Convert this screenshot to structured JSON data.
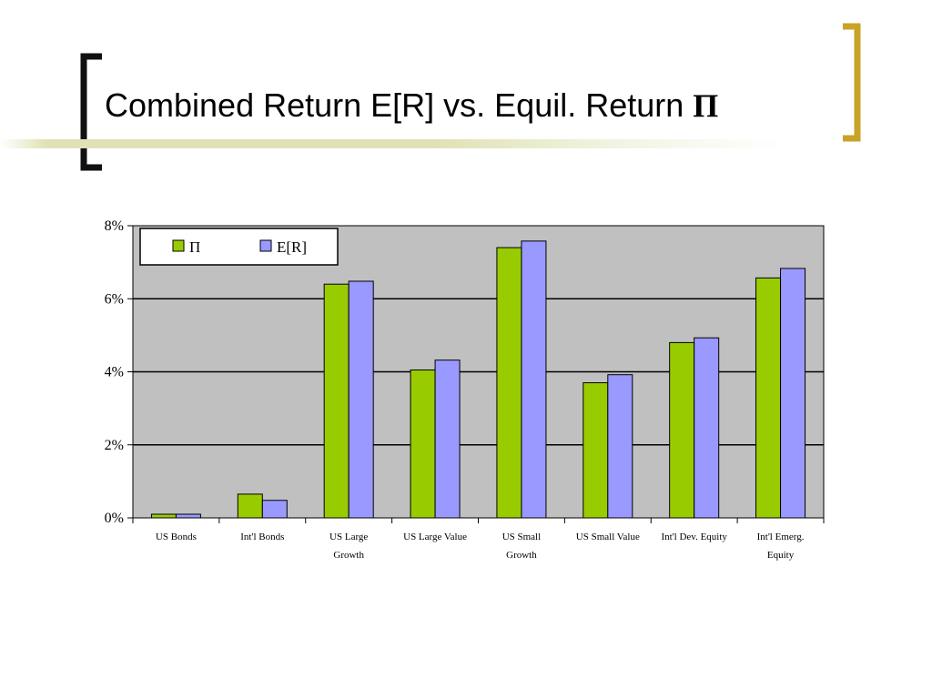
{
  "slide": {
    "title_text": "Combined Return E[R] vs. Equil. Return ",
    "title_symbol": "Π"
  },
  "colors": {
    "bracket_dark": "#111111",
    "bracket_gold": "#c9a227",
    "plot_bg": "#c0c0c0",
    "series_pi": "#99cc00",
    "series_er": "#9999ff"
  },
  "chart_data": {
    "type": "bar",
    "categories": [
      [
        "US Bonds"
      ],
      [
        "Int'l Bonds"
      ],
      [
        "US Large",
        "Growth"
      ],
      [
        "US Large Value"
      ],
      [
        "US Small",
        "Growth"
      ],
      [
        "US Small Value"
      ],
      [
        "Int'l Dev. Equity"
      ],
      [
        "Int'l Emerg.",
        "Equity"
      ]
    ],
    "series": [
      {
        "name": "Π",
        "color": "#99cc00",
        "values": [
          0.1,
          0.65,
          6.4,
          4.05,
          7.4,
          3.7,
          4.8,
          6.57
        ]
      },
      {
        "name": "E[R]",
        "color": "#9999ff",
        "values": [
          0.1,
          0.48,
          6.48,
          4.32,
          7.58,
          3.92,
          4.93,
          6.83
        ]
      }
    ],
    "ylim": [
      0,
      8
    ],
    "yticks": [
      "0%",
      "2%",
      "4%",
      "6%",
      "8%"
    ],
    "grid": true,
    "legend_position": "top-left"
  }
}
